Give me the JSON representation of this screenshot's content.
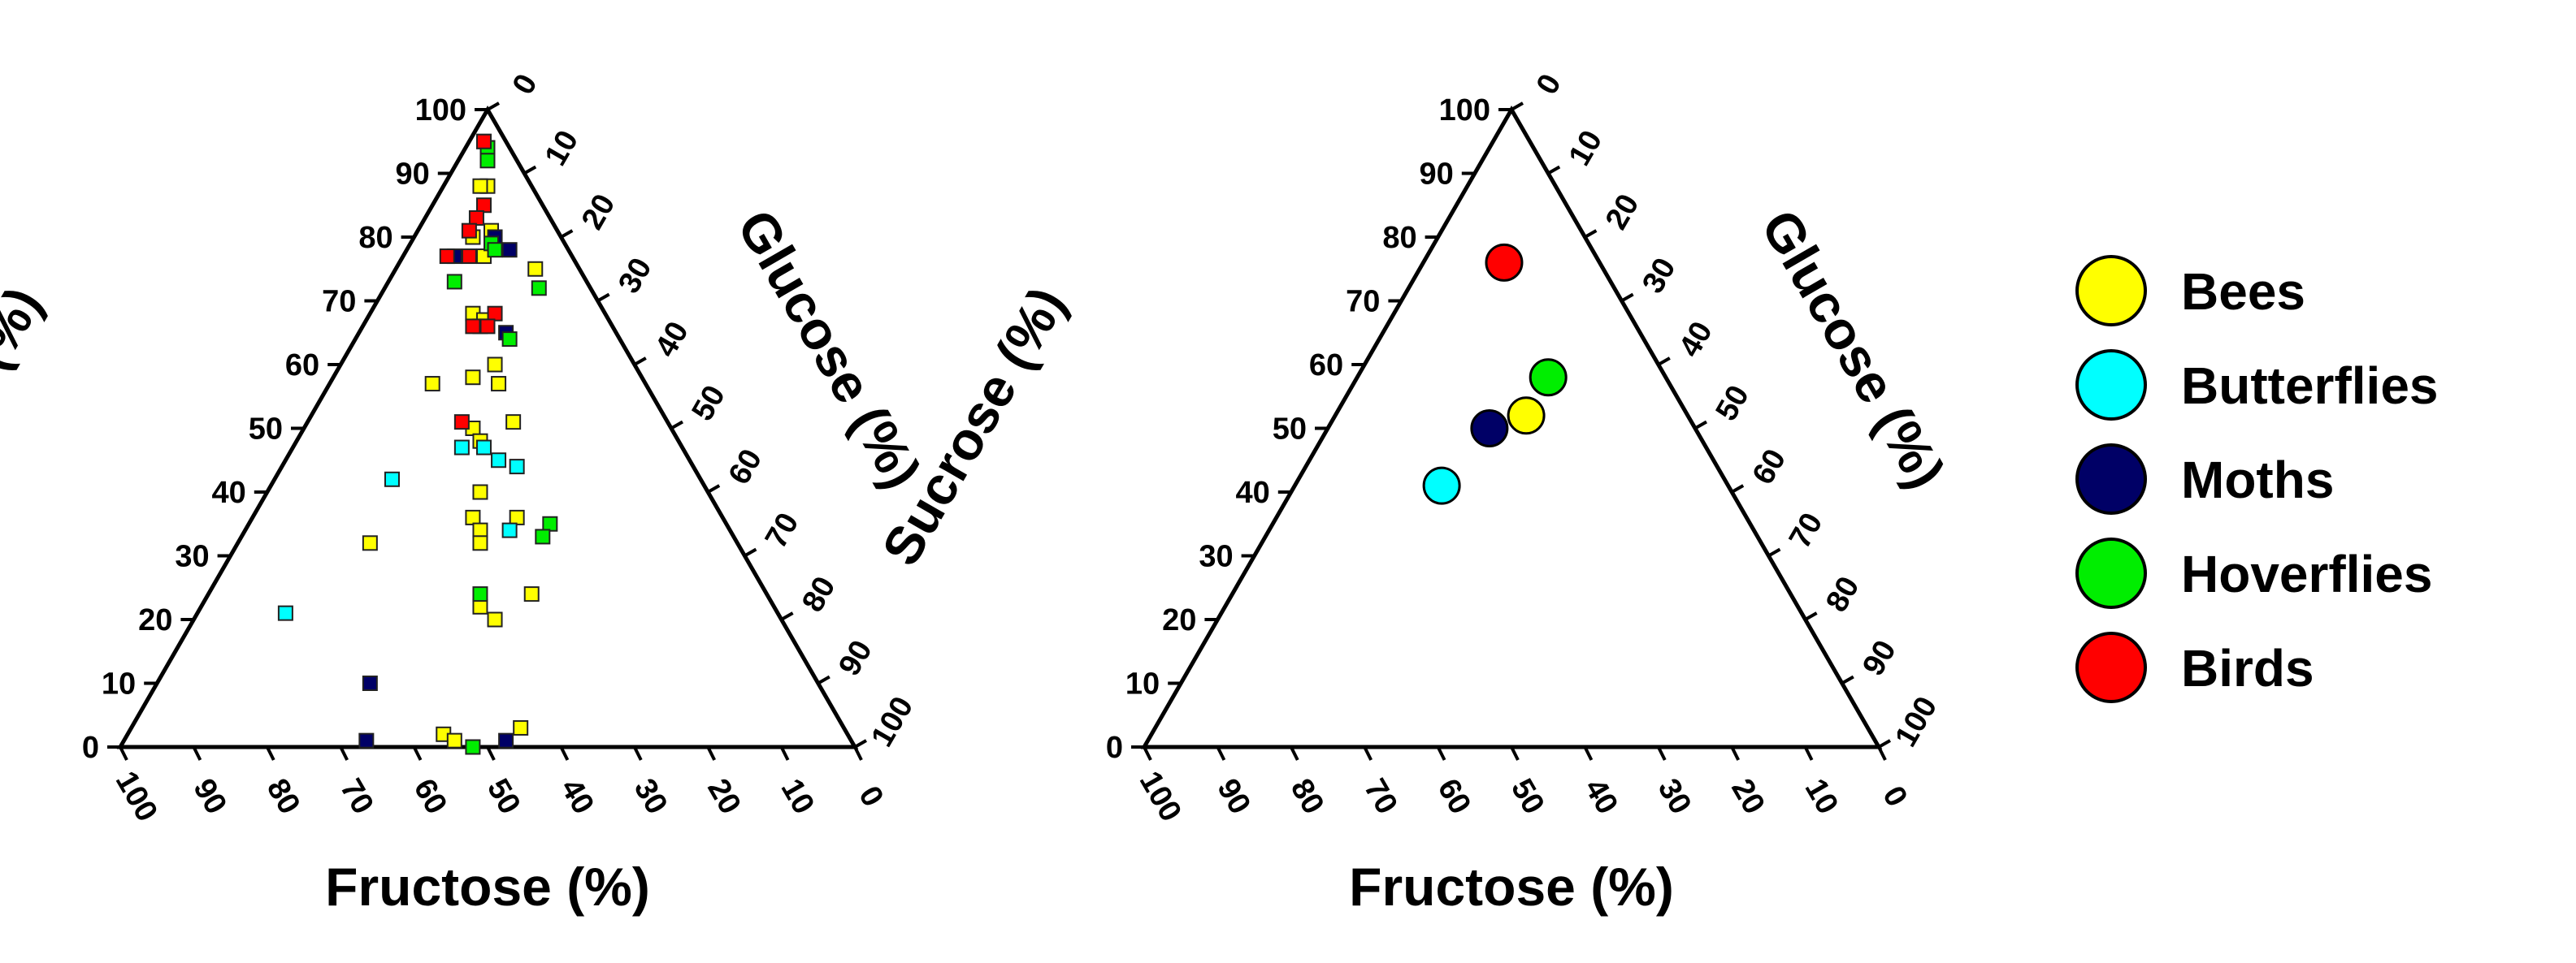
{
  "legend": [
    {
      "label": "Bees",
      "color": "#ffff00"
    },
    {
      "label": "Butterflies",
      "color": "#00ffff"
    },
    {
      "label": "Moths",
      "color": "#000066"
    },
    {
      "label": "Hoverflies",
      "color": "#00ee00"
    },
    {
      "label": "Birds",
      "color": "#ff0000"
    }
  ],
  "chart_data": [
    {
      "type": "scatter",
      "subtype": "ternary",
      "marker": "square",
      "axes": {
        "sucrose": {
          "label": "Sucrose (%)",
          "ticks": [
            "0",
            "10",
            "20",
            "30",
            "40",
            "50",
            "60",
            "70",
            "80",
            "90",
            "100"
          ]
        },
        "glucose": {
          "label": "Glucose (%)",
          "ticks": [
            "0",
            "10",
            "20",
            "30",
            "40",
            "50",
            "60",
            "70",
            "80",
            "90",
            "100"
          ]
        },
        "fructose": {
          "label": "Fructose (%)",
          "ticks": [
            "100",
            "90",
            "80",
            "70",
            "60",
            "50",
            "40",
            "30",
            "20",
            "10",
            "0"
          ]
        }
      },
      "series": [
        {
          "name": "Bees",
          "color": "#ffff00",
          "points": [
            {
              "sucrose": 95,
              "glucose": 2
            },
            {
              "sucrose": 94,
              "glucose": 3
            },
            {
              "sucrose": 88,
              "glucose": 6
            },
            {
              "sucrose": 88,
              "glucose": 5
            },
            {
              "sucrose": 81,
              "glucose": 10
            },
            {
              "sucrose": 80,
              "glucose": 8
            },
            {
              "sucrose": 77,
              "glucose": 11
            },
            {
              "sucrose": 75,
              "glucose": 19
            },
            {
              "sucrose": 68,
              "glucose": 14
            },
            {
              "sucrose": 67,
              "glucose": 16
            },
            {
              "sucrose": 60,
              "glucose": 21
            },
            {
              "sucrose": 58,
              "glucose": 19
            },
            {
              "sucrose": 57,
              "glucose": 23
            },
            {
              "sucrose": 57,
              "glucose": 14
            },
            {
              "sucrose": 51,
              "glucose": 28
            },
            {
              "sucrose": 50,
              "glucose": 23
            },
            {
              "sucrose": 48,
              "glucose": 25
            },
            {
              "sucrose": 40,
              "glucose": 29
            },
            {
              "sucrose": 36,
              "glucose": 30
            },
            {
              "sucrose": 36,
              "glucose": 36
            },
            {
              "sucrose": 34,
              "glucose": 32
            },
            {
              "sucrose": 32,
              "glucose": 33
            },
            {
              "sucrose": 32,
              "glucose": 18
            },
            {
              "sucrose": 24,
              "glucose": 44
            },
            {
              "sucrose": 22,
              "glucose": 38
            },
            {
              "sucrose": 20,
              "glucose": 41
            },
            {
              "sucrose": 3,
              "glucose": 53
            },
            {
              "sucrose": 2,
              "glucose": 43
            },
            {
              "sucrose": 1,
              "glucose": 45
            }
          ]
        },
        {
          "name": "Butterflies",
          "color": "#00ffff",
          "points": [
            {
              "sucrose": 21,
              "glucose": 12
            },
            {
              "sucrose": 42,
              "glucose": 16
            },
            {
              "sucrose": 47,
              "glucose": 23
            },
            {
              "sucrose": 47,
              "glucose": 26
            },
            {
              "sucrose": 45,
              "glucose": 29
            },
            {
              "sucrose": 44,
              "glucose": 32
            },
            {
              "sucrose": 34,
              "glucose": 36
            }
          ]
        },
        {
          "name": "Moths",
          "color": "#000066",
          "points": [
            {
              "sucrose": 80,
              "glucose": 11
            },
            {
              "sucrose": 77,
              "glucose": 7
            },
            {
              "sucrose": 78,
              "glucose": 14
            },
            {
              "sucrose": 65,
              "glucose": 20
            },
            {
              "sucrose": 66,
              "glucose": 16
            },
            {
              "sucrose": 10,
              "glucose": 29
            },
            {
              "sucrose": 1,
              "glucose": 33
            },
            {
              "sucrose": 1,
              "glucose": 52
            }
          ]
        },
        {
          "name": "Hoverflies",
          "color": "#00ee00",
          "points": [
            {
              "sucrose": 94,
              "glucose": 3
            },
            {
              "sucrose": 92,
              "glucose": 4
            },
            {
              "sucrose": 79,
              "glucose": 11
            },
            {
              "sucrose": 78,
              "glucose": 12
            },
            {
              "sucrose": 73,
              "glucose": 9
            },
            {
              "sucrose": 72,
              "glucose": 21
            },
            {
              "sucrose": 64,
              "glucose": 21
            },
            {
              "sucrose": 35,
              "glucose": 41
            },
            {
              "sucrose": 33,
              "glucose": 41
            },
            {
              "sucrose": 24,
              "glucose": 37
            },
            {
              "sucrose": 0,
              "glucose": 48
            }
          ]
        },
        {
          "name": "Birds",
          "color": "#ff0000",
          "points": [
            {
              "sucrose": 95,
              "glucose": 2
            },
            {
              "sucrose": 85,
              "glucose": 7
            },
            {
              "sucrose": 83,
              "glucose": 7
            },
            {
              "sucrose": 81,
              "glucose": 7
            },
            {
              "sucrose": 77,
              "glucose": 9
            },
            {
              "sucrose": 77,
              "glucose": 6
            },
            {
              "sucrose": 68,
              "glucose": 17
            },
            {
              "sucrose": 66,
              "glucose": 17
            },
            {
              "sucrose": 66,
              "glucose": 15
            },
            {
              "sucrose": 51,
              "glucose": 21
            }
          ]
        }
      ]
    },
    {
      "type": "scatter",
      "subtype": "ternary",
      "marker": "circle",
      "axes": {
        "sucrose": {
          "label": "Sucrose (%)",
          "ticks": [
            "0",
            "10",
            "20",
            "30",
            "40",
            "50",
            "60",
            "70",
            "80",
            "90",
            "100"
          ]
        },
        "glucose": {
          "label": "Glucose (%)",
          "ticks": [
            "0",
            "10",
            "20",
            "30",
            "40",
            "50",
            "60",
            "70",
            "80",
            "90",
            "100"
          ]
        },
        "fructose": {
          "label": "Fructose (%)",
          "ticks": [
            "100",
            "90",
            "80",
            "70",
            "60",
            "50",
            "40",
            "30",
            "20",
            "10",
            "0"
          ]
        }
      },
      "series": [
        {
          "name": "Bees",
          "color": "#ffff00",
          "points": [
            {
              "sucrose": 52,
              "glucose": 26
            }
          ]
        },
        {
          "name": "Butterflies",
          "color": "#00ffff",
          "points": [
            {
              "sucrose": 41,
              "glucose": 20
            }
          ]
        },
        {
          "name": "Moths",
          "color": "#000066",
          "points": [
            {
              "sucrose": 50,
              "glucose": 22
            }
          ]
        },
        {
          "name": "Hoverflies",
          "color": "#00ee00",
          "points": [
            {
              "sucrose": 58,
              "glucose": 26
            }
          ]
        },
        {
          "name": "Birds",
          "color": "#ff0000",
          "points": [
            {
              "sucrose": 76,
              "glucose": 11
            }
          ]
        }
      ]
    }
  ]
}
